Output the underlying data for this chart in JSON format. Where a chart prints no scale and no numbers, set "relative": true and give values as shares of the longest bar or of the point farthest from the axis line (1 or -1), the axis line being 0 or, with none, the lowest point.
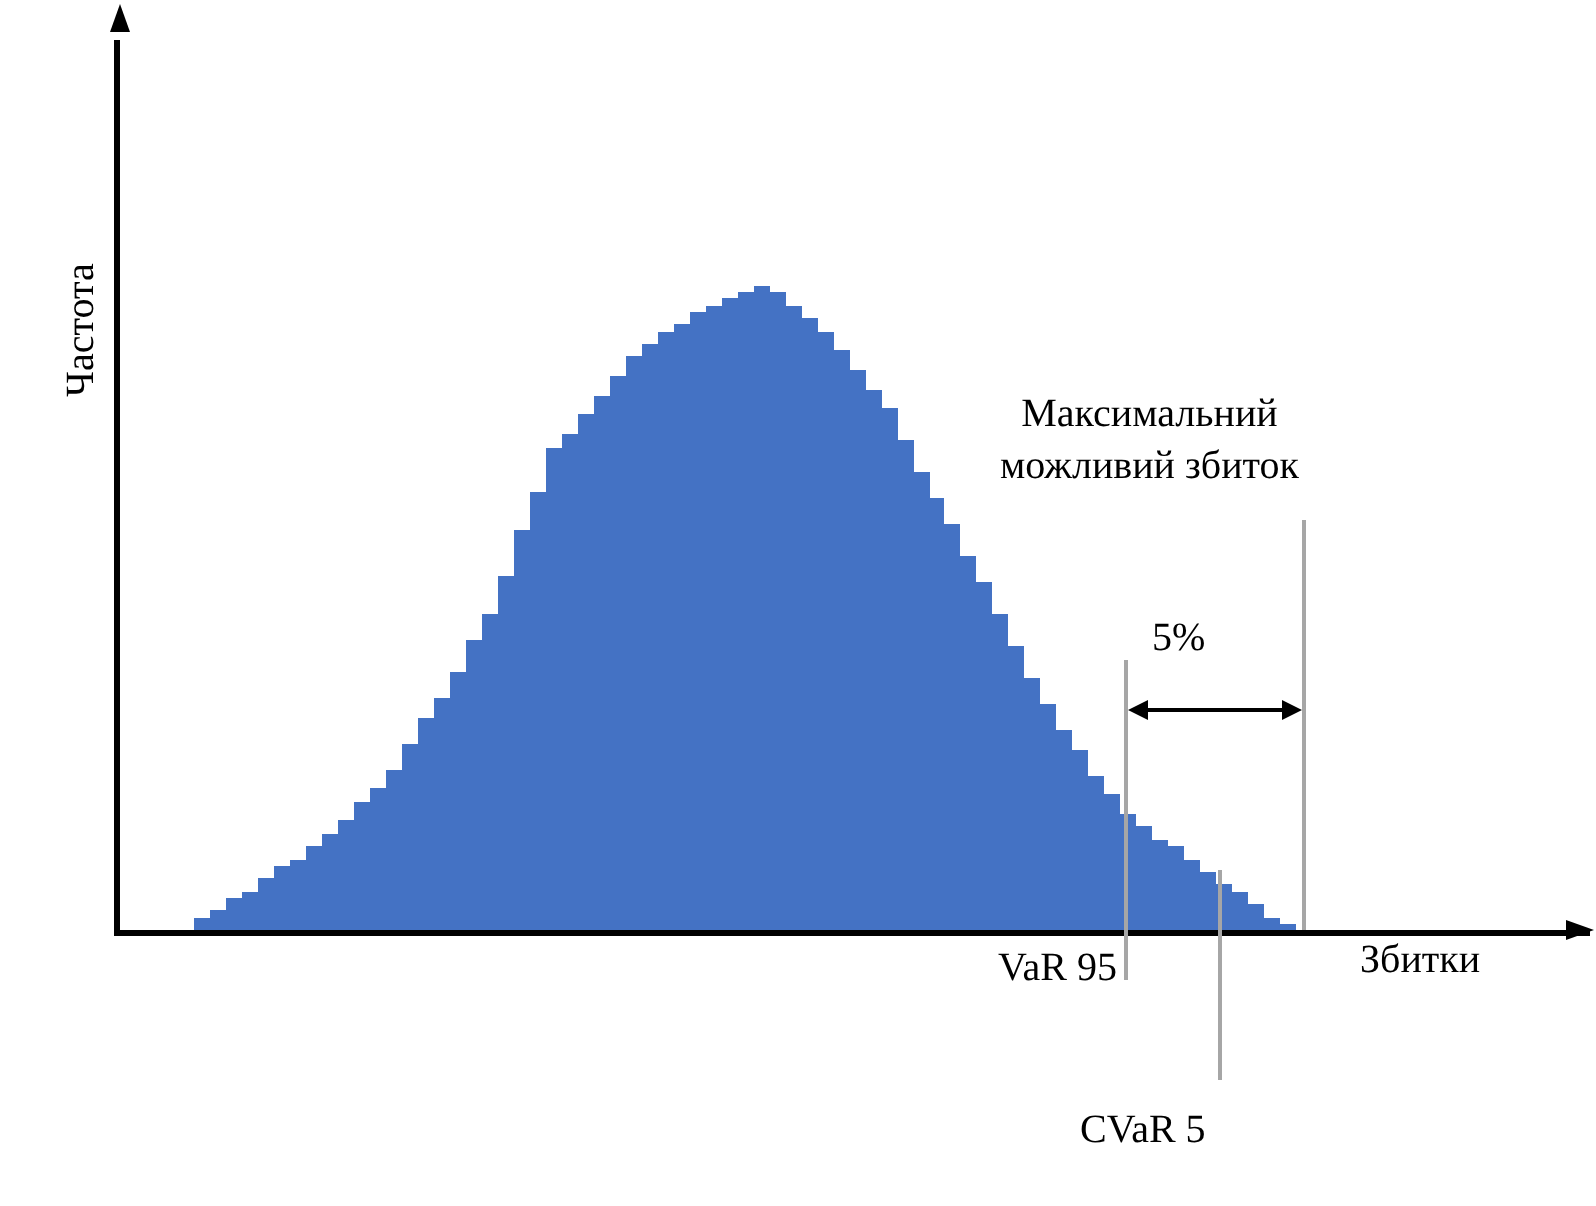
{
  "chart_data": {
    "type": "bar",
    "relative": true,
    "color": "#4472c4",
    "xlabel": "Збитки",
    "ylabel": "Частота",
    "grid": false,
    "legend": false,
    "categories": [
      null,
      null,
      null,
      null,
      null,
      null,
      null,
      null,
      null,
      null,
      null,
      null,
      null,
      null,
      null,
      null,
      null,
      null,
      null,
      null,
      null,
      null,
      null,
      null,
      null,
      null,
      null,
      null,
      null,
      null,
      null,
      null,
      null,
      null,
      null,
      null,
      null,
      null,
      null,
      null,
      null,
      null,
      null,
      null,
      null,
      null,
      null,
      null,
      null,
      null,
      null,
      null,
      null,
      null,
      null,
      null,
      null,
      null,
      null,
      null,
      null,
      null,
      null,
      null,
      null,
      null,
      null,
      null,
      null
    ],
    "values": [
      0.02,
      0.03,
      0.05,
      0.06,
      0.08,
      0.1,
      0.11,
      0.13,
      0.15,
      0.17,
      0.2,
      0.22,
      0.25,
      0.29,
      0.33,
      0.36,
      0.4,
      0.45,
      0.49,
      0.55,
      0.62,
      0.68,
      0.75,
      0.77,
      0.8,
      0.83,
      0.86,
      0.89,
      0.91,
      0.93,
      0.94,
      0.96,
      0.97,
      0.98,
      0.99,
      1.0,
      0.99,
      0.97,
      0.95,
      0.93,
      0.9,
      0.87,
      0.84,
      0.81,
      0.76,
      0.71,
      0.67,
      0.63,
      0.58,
      0.54,
      0.49,
      0.44,
      0.39,
      0.35,
      0.31,
      0.28,
      0.24,
      0.21,
      0.18,
      0.16,
      0.14,
      0.13,
      0.11,
      0.09,
      0.07,
      0.06,
      0.04,
      0.02,
      0.01
    ],
    "annotations": [
      "Максимальний\nможливий збиток",
      "5%",
      "VaR 95",
      "CVaR 5"
    ]
  }
}
